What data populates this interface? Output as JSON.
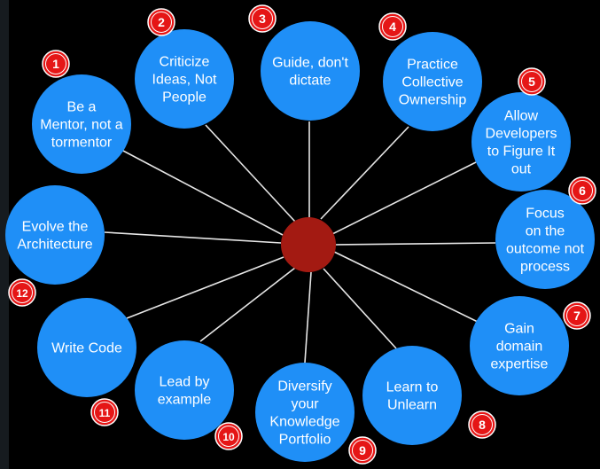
{
  "colors": {
    "background": "#000000",
    "bubble_fill": "#1f8ff7",
    "bubble_text": "#ffffff",
    "hub_fill": "#a31a12",
    "connector": "#e6e6e6",
    "badge_fill": "#e51616",
    "badge_ring": "#ffffff",
    "badge_text": "#ffffff"
  },
  "items": [
    {
      "number": "1",
      "lines": [
        "Be a",
        "Mentor, not a",
        "tormentor"
      ]
    },
    {
      "number": "2",
      "lines": [
        "Criticize",
        "Ideas, Not",
        "People"
      ]
    },
    {
      "number": "3",
      "lines": [
        "Guide, don't",
        "dictate"
      ]
    },
    {
      "number": "4",
      "lines": [
        "Practice",
        "Collective",
        "Ownership"
      ]
    },
    {
      "number": "5",
      "lines": [
        "Allow",
        "Developers",
        "to Figure It",
        "out"
      ]
    },
    {
      "number": "6",
      "lines": [
        "Focus",
        "on the",
        "outcome not",
        "process"
      ]
    },
    {
      "number": "7",
      "lines": [
        "Gain",
        "domain",
        "expertise"
      ]
    },
    {
      "number": "8",
      "lines": [
        "Learn to",
        "Unlearn"
      ]
    },
    {
      "number": "9",
      "lines": [
        "Diversify",
        "your",
        "Knowledge",
        "Portfolio"
      ]
    },
    {
      "number": "10",
      "lines": [
        "Lead by",
        "example"
      ]
    },
    {
      "number": "11",
      "lines": [
        "Write Code"
      ]
    },
    {
      "number": "12",
      "lines": [
        "Evolve the",
        "Architecture"
      ]
    }
  ]
}
